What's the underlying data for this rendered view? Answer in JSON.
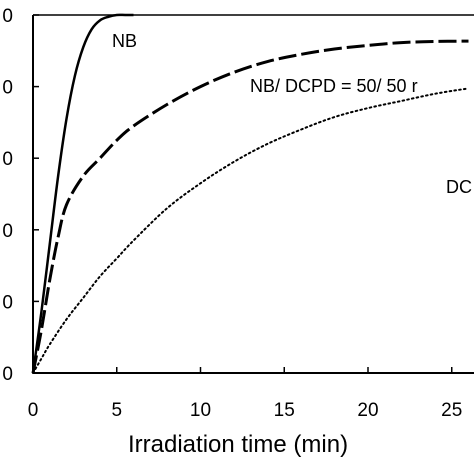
{
  "chart_data": {
    "type": "line",
    "xlabel": "Irradiation time (min)",
    "ylabel": "",
    "xlim": [
      0,
      26
    ],
    "ylim": [
      0,
      100
    ],
    "x_ticks": [
      0,
      5,
      10,
      15,
      20,
      25
    ],
    "x_tick_labels": [
      "0",
      "5",
      "10",
      "15",
      "20",
      "25"
    ],
    "y_ticks": [
      0,
      20,
      40,
      60,
      80,
      100
    ],
    "y_tick_labels": [
      "0",
      "0",
      "0",
      "0",
      "0",
      "0"
    ],
    "grid": false,
    "legend": "none",
    "series": [
      {
        "name": "NB",
        "style": "solid",
        "x": [
          0,
          0.5,
          1,
          1.5,
          2,
          2.5,
          3,
          3.5,
          4,
          4.5,
          5,
          5.5,
          6
        ],
        "y": [
          0,
          17,
          36,
          55,
          71,
          83,
          91,
          96,
          98.5,
          99.5,
          100,
          100,
          100
        ]
      },
      {
        "name": "NB/ DCPD = 50/ 50 r",
        "style": "dashed",
        "x": [
          0,
          0.5,
          1,
          1.5,
          2,
          3,
          4,
          5,
          6,
          8,
          10,
          12,
          14,
          16,
          18,
          20,
          22,
          24,
          26
        ],
        "y": [
          0,
          12,
          26,
          38,
          47,
          55,
          60,
          65,
          69,
          75,
          80,
          84,
          87,
          89,
          90.5,
          91.5,
          92.3,
          92.6,
          92.7
        ]
      },
      {
        "name": "DC",
        "style": "dotted",
        "x": [
          0,
          0.5,
          1,
          2,
          3,
          4,
          5,
          6,
          8,
          10,
          12,
          14,
          16,
          18,
          20,
          22,
          24,
          26
        ],
        "y": [
          0,
          4,
          8,
          15,
          21,
          27,
          32,
          37,
          46,
          53,
          59,
          64,
          68,
          71.5,
          74,
          76,
          78,
          79.5
        ]
      }
    ],
    "annotations": [
      {
        "text": "NB",
        "series": 0
      },
      {
        "text": "NB/ DCPD = 50/ 50 r",
        "series": 1
      },
      {
        "text": "DC",
        "series": 2
      }
    ]
  }
}
